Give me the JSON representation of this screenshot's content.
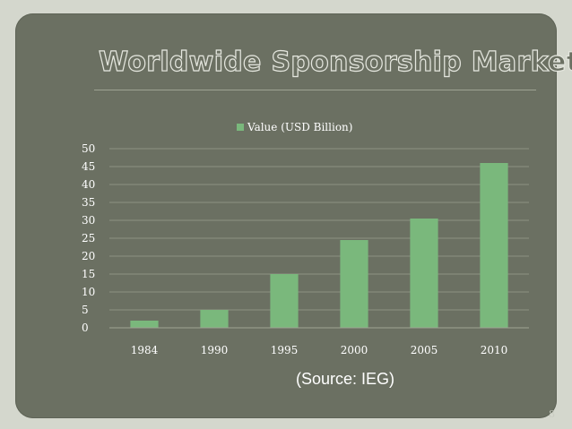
{
  "slide": {
    "title": "Worldwide Sponsorship Market",
    "source_note": "(Source: IEG)",
    "slide_number": "8"
  },
  "colors": {
    "background": "#6b7062",
    "bar": "#7ab87c",
    "text": "#ffffff"
  },
  "chart_data": {
    "type": "bar",
    "title": "",
    "xlabel": "",
    "ylabel": "",
    "categories": [
      "1984",
      "1990",
      "1995",
      "2000",
      "2005",
      "2010"
    ],
    "series": [
      {
        "name": "Value (USD Billion)",
        "values": [
          2,
          5,
          15,
          24.5,
          30.5,
          46
        ]
      }
    ],
    "ylim": [
      0,
      50
    ],
    "yticks": [
      0,
      5,
      10,
      15,
      20,
      25,
      30,
      35,
      40,
      45,
      50
    ],
    "grid": true,
    "legend_position": "top"
  }
}
